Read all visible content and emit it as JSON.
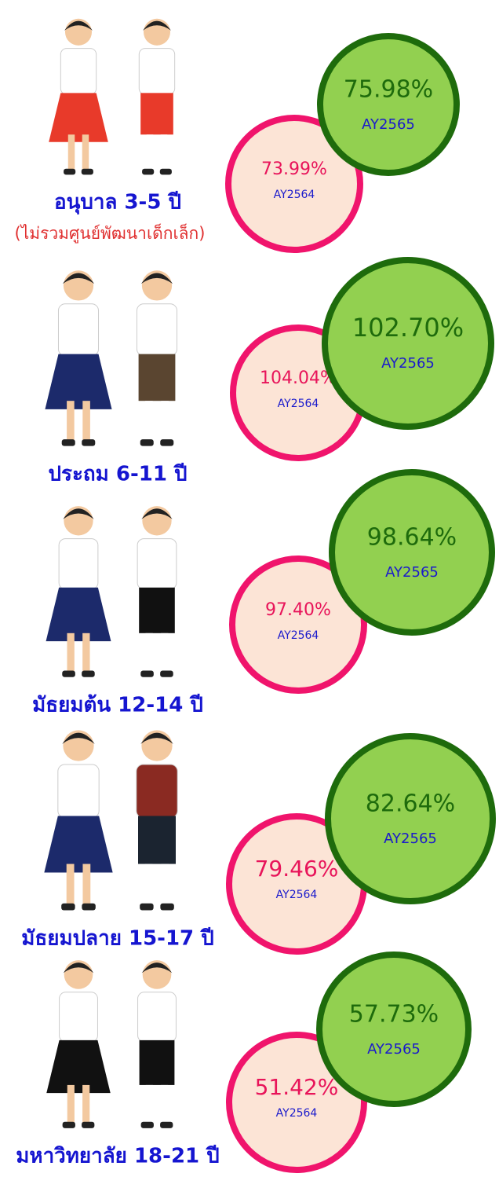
{
  "levels": [
    {
      "label": "อนุบาล 3-5 ปี",
      "note": "(ไม่รวมศูนย์พัฒนาเด็กเล็ก)",
      "ay2564": {
        "value": "73.99%",
        "year": "AY2564"
      },
      "ay2565": {
        "value": "75.98%",
        "year": "AY2565"
      }
    },
    {
      "label": "ประถม 6-11 ปี",
      "ay2564": {
        "value": "104.04%",
        "year": "AY2564"
      },
      "ay2565": {
        "value": "102.70%",
        "year": "AY2565"
      }
    },
    {
      "label": "มัธยมต้น 12-14 ปี",
      "ay2564": {
        "value": "97.40%",
        "year": "AY2564"
      },
      "ay2565": {
        "value": "98.64%",
        "year": "AY2565"
      }
    },
    {
      "label": "มัธยมปลาย 15-17 ปี",
      "ay2564": {
        "value": "79.46%",
        "year": "AY2564"
      },
      "ay2565": {
        "value": "82.64%",
        "year": "AY2565"
      }
    },
    {
      "label": "มหาวิทยาลัย 18-21 ปี",
      "ay2564": {
        "value": "51.42%",
        "year": "AY2564"
      },
      "ay2565": {
        "value": "57.73%",
        "year": "AY2565"
      }
    }
  ]
}
